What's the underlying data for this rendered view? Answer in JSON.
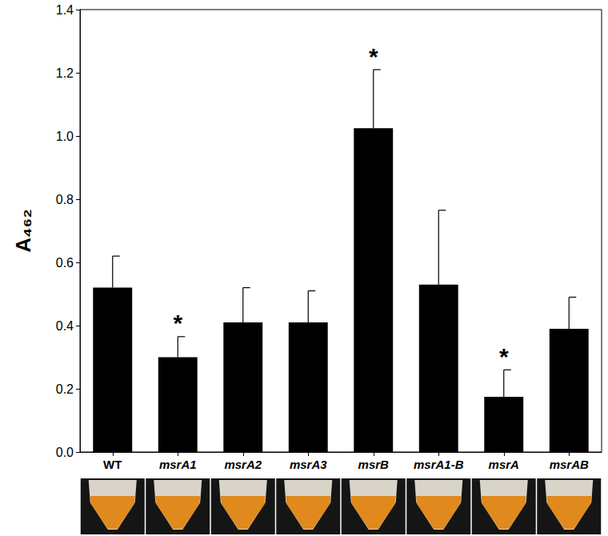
{
  "chart_data": {
    "type": "bar",
    "y_label": "A₄₆₂",
    "categories": [
      "WT",
      "msrA1",
      "msrA2",
      "msrA3",
      "msrB",
      "msrA1-B",
      "msrA",
      "msrAB"
    ],
    "values": [
      0.52,
      0.3,
      0.41,
      0.41,
      1.025,
      0.53,
      0.175,
      0.39
    ],
    "errors": [
      0.1,
      0.065,
      0.11,
      0.1,
      0.185,
      0.235,
      0.085,
      0.1
    ],
    "annotations": [
      {
        "category": "msrA1",
        "text": "*"
      },
      {
        "category": "msrB",
        "text": "*"
      },
      {
        "category": "msrA",
        "text": "*"
      }
    ],
    "color": "#000000",
    "ylim": [
      0,
      1.4
    ],
    "yticks": [
      {
        "value": 0,
        "label": "0.0"
      },
      0.2,
      0.4,
      0.6,
      0.8,
      {
        "value": 1,
        "label": "1.0"
      },
      1.2,
      1.4
    ],
    "grid": false
  }
}
